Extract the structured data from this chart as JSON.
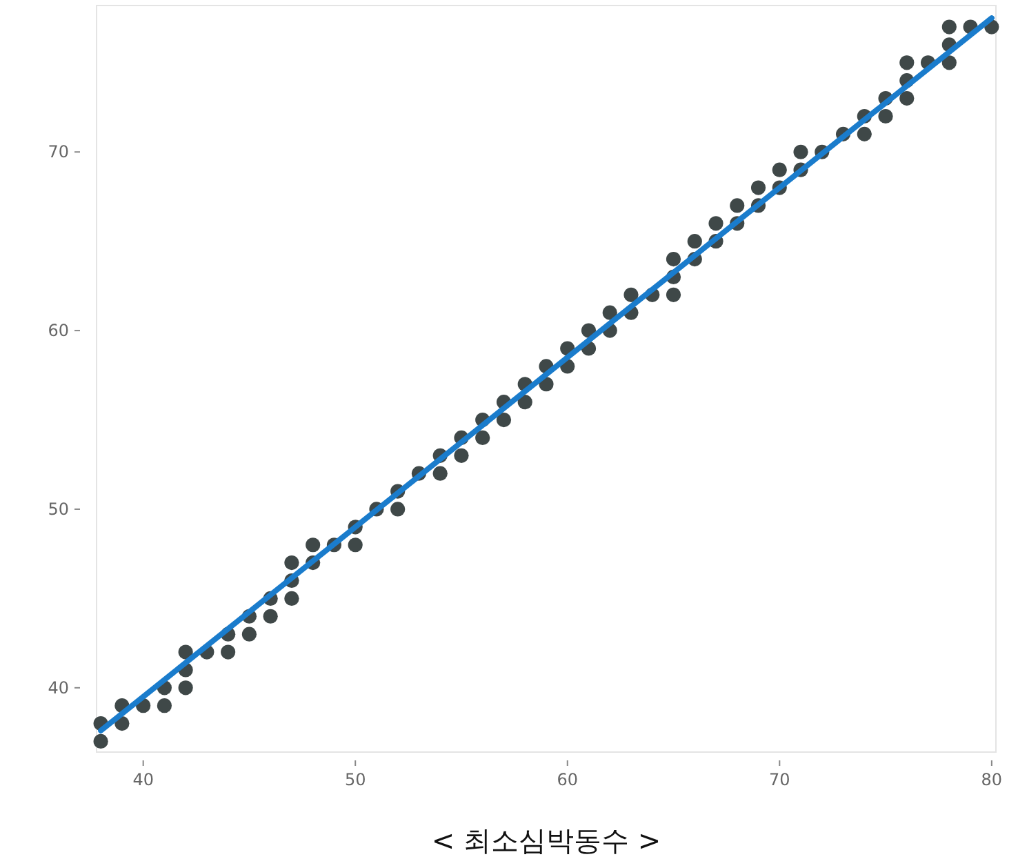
{
  "chart_data": {
    "type": "scatter",
    "xlabel": "< 최소심박동수 >",
    "xlim": [
      37.8,
      80.2
    ],
    "ylim": [
      36.4,
      78.2
    ],
    "xticks": [
      40,
      50,
      60,
      70,
      80
    ],
    "yticks": [
      40,
      50,
      60,
      70
    ],
    "series": [
      {
        "type": "scatter",
        "color": "#3f4848",
        "marker": "circle",
        "x": [
          38,
          38,
          39,
          39,
          40,
          41,
          41,
          42,
          42,
          42,
          43,
          44,
          44,
          45,
          45,
          46,
          46,
          47,
          47,
          47,
          48,
          48,
          49,
          50,
          50,
          51,
          52,
          52,
          53,
          54,
          54,
          55,
          55,
          56,
          56,
          57,
          57,
          58,
          58,
          59,
          59,
          60,
          60,
          61,
          61,
          62,
          62,
          63,
          63,
          64,
          65,
          65,
          65,
          66,
          66,
          67,
          67,
          68,
          68,
          69,
          69,
          70,
          70,
          71,
          71,
          72,
          73,
          74,
          74,
          75,
          75,
          76,
          76,
          76,
          77,
          78,
          78,
          78,
          79,
          80
        ],
        "values": [
          38,
          37,
          39,
          38,
          39,
          40,
          39,
          42,
          41,
          40,
          42,
          43,
          42,
          44,
          43,
          45,
          44,
          47,
          46,
          45,
          48,
          47,
          48,
          49,
          48,
          50,
          51,
          50,
          52,
          53,
          52,
          54,
          53,
          55,
          54,
          56,
          55,
          57,
          56,
          58,
          57,
          59,
          58,
          60,
          59,
          61,
          60,
          62,
          61,
          62,
          64,
          63,
          62,
          65,
          64,
          66,
          65,
          67,
          66,
          68,
          67,
          69,
          68,
          70,
          69,
          70,
          71,
          72,
          71,
          73,
          72,
          75,
          74,
          73,
          75,
          77,
          76,
          75,
          77,
          77
        ]
      },
      {
        "type": "line",
        "color": "#1a7ccc",
        "line_style": "solid",
        "x": [
          38,
          80
        ],
        "values": [
          37.6,
          77.5
        ]
      }
    ]
  }
}
